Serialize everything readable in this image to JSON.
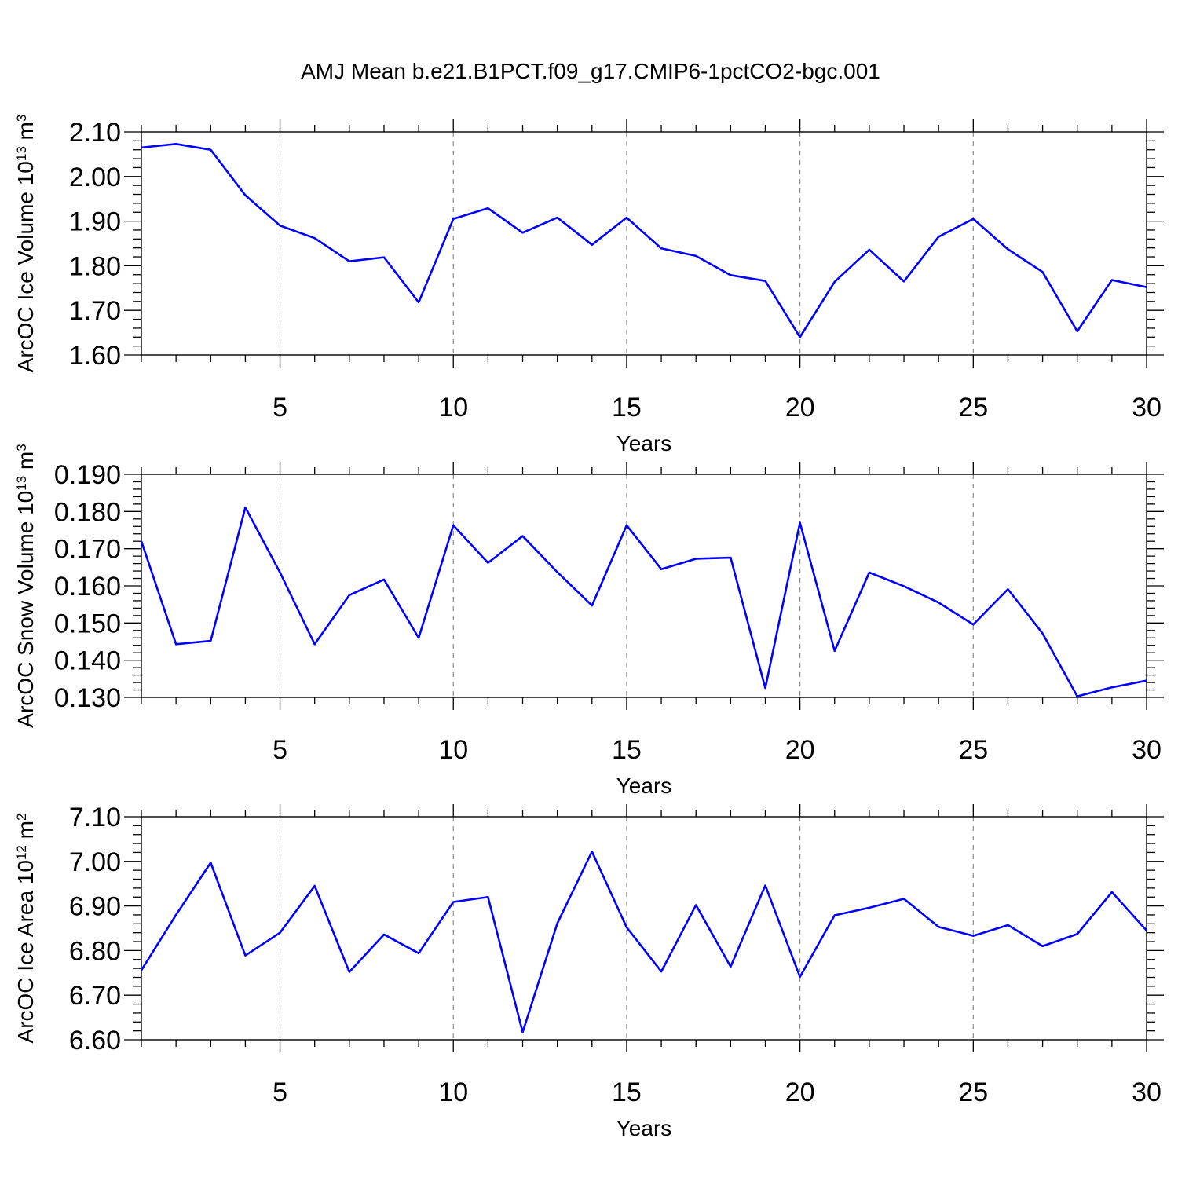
{
  "figure": {
    "title": "AMJ Mean b.e21.B1PCT.f09_g17.CMIP6-1pctCO2-bgc.001"
  },
  "colors": {
    "line": "#0000ff",
    "axis": "#000000",
    "grid": "#8c8c8c",
    "background": "#ffffff"
  },
  "chart_data": [
    {
      "type": "line",
      "xlabel": "Years",
      "ylabel": {
        "text": "ArcOC Ice Volume 10",
        "sup": "13",
        "unit": " m",
        "unit_sup": "3"
      },
      "xlim": [
        1,
        30
      ],
      "ylim": [
        1.6,
        2.1
      ],
      "xticks": [
        5,
        10,
        15,
        20,
        25,
        30
      ],
      "yticks": [
        "1.60",
        "1.70",
        "1.80",
        "1.90",
        "2.00",
        "2.10"
      ],
      "grid": "vertical dashed at x ticks",
      "x": [
        1,
        2,
        3,
        4,
        5,
        6,
        7,
        8,
        9,
        10,
        11,
        12,
        13,
        14,
        15,
        16,
        17,
        18,
        19,
        20,
        21,
        22,
        23,
        24,
        25,
        26,
        27,
        28,
        29,
        30
      ],
      "series": [
        {
          "values": [
            2.065,
            2.073,
            2.06,
            1.958,
            1.89,
            1.862,
            1.81,
            1.819,
            1.718,
            1.905,
            1.929,
            1.874,
            1.908,
            1.847,
            1.908,
            1.839,
            1.822,
            1.779,
            1.766,
            1.64,
            1.764,
            1.836,
            1.765,
            1.865,
            1.905,
            1.837,
            1.786,
            1.653,
            1.768,
            1.752
          ]
        }
      ]
    },
    {
      "type": "line",
      "xlabel": "Years",
      "ylabel": {
        "text": "ArcOC Snow Volume 10",
        "sup": "13",
        "unit": " m",
        "unit_sup": "3"
      },
      "xlim": [
        1,
        30
      ],
      "ylim": [
        0.13,
        0.19
      ],
      "xticks": [
        5,
        10,
        15,
        20,
        25,
        30
      ],
      "yticks": [
        "0.130",
        "0.140",
        "0.150",
        "0.160",
        "0.170",
        "0.180",
        "0.190"
      ],
      "grid": "vertical dashed at x ticks",
      "x": [
        1,
        2,
        3,
        4,
        5,
        6,
        7,
        8,
        9,
        10,
        11,
        12,
        13,
        14,
        15,
        16,
        17,
        18,
        19,
        20,
        21,
        22,
        23,
        24,
        25,
        26,
        27,
        28,
        29,
        30
      ],
      "series": [
        {
          "values": [
            0.172,
            0.1443,
            0.1452,
            0.1811,
            0.1636,
            0.1443,
            0.1575,
            0.1617,
            0.146,
            0.1763,
            0.1662,
            0.1734,
            0.1637,
            0.1547,
            0.1763,
            0.1645,
            0.1673,
            0.1676,
            0.1325,
            0.177,
            0.1425,
            0.1636,
            0.1599,
            0.1555,
            0.1496,
            0.1591,
            0.1472,
            0.1303,
            0.1327,
            0.1345
          ]
        }
      ]
    },
    {
      "type": "line",
      "xlabel": "Years",
      "ylabel": {
        "text": "ArcOC Ice Area 10",
        "sup": "12",
        "unit": " m",
        "unit_sup": "2"
      },
      "xlim": [
        1,
        30
      ],
      "ylim": [
        6.6,
        7.1
      ],
      "xticks": [
        5,
        10,
        15,
        20,
        25,
        30
      ],
      "yticks": [
        "6.60",
        "6.70",
        "6.80",
        "6.90",
        "7.00",
        "7.10"
      ],
      "grid": "vertical dashed at x ticks",
      "x": [
        1,
        2,
        3,
        4,
        5,
        6,
        7,
        8,
        9,
        10,
        11,
        12,
        13,
        14,
        15,
        16,
        17,
        18,
        19,
        20,
        21,
        22,
        23,
        24,
        25,
        26,
        27,
        28,
        29,
        30
      ],
      "series": [
        {
          "values": [
            6.756,
            6.88,
            6.997,
            6.789,
            6.84,
            6.945,
            6.752,
            6.836,
            6.794,
            6.909,
            6.92,
            6.617,
            6.861,
            7.022,
            6.852,
            6.753,
            6.902,
            6.764,
            6.946,
            6.741,
            6.879,
            6.896,
            6.916,
            6.853,
            6.833,
            6.857,
            6.81,
            6.837,
            6.931,
            6.845
          ]
        }
      ]
    }
  ]
}
